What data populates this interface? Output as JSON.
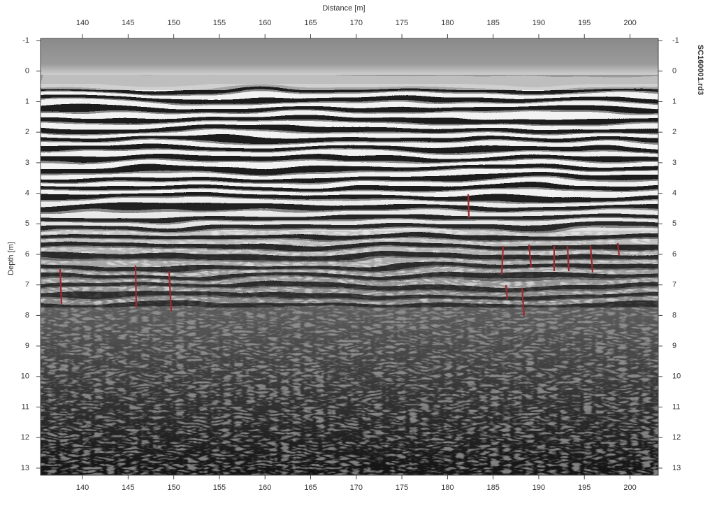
{
  "chart_data": {
    "type": "radargram",
    "xlabel": "Distance [m]",
    "ylabel": "Depth [m]",
    "side_label": "SC160001.rd3",
    "xlim": [
      135.4,
      203.1
    ],
    "ylim": [
      -1.07,
      13.23
    ],
    "y_inverted": true,
    "xticks": [
      140,
      145,
      150,
      155,
      160,
      165,
      170,
      175,
      180,
      185,
      190,
      195,
      200
    ],
    "yticks": [
      -1,
      0,
      1,
      2,
      3,
      4,
      5,
      6,
      7,
      8,
      9,
      10,
      11,
      12,
      13
    ]
  }
}
